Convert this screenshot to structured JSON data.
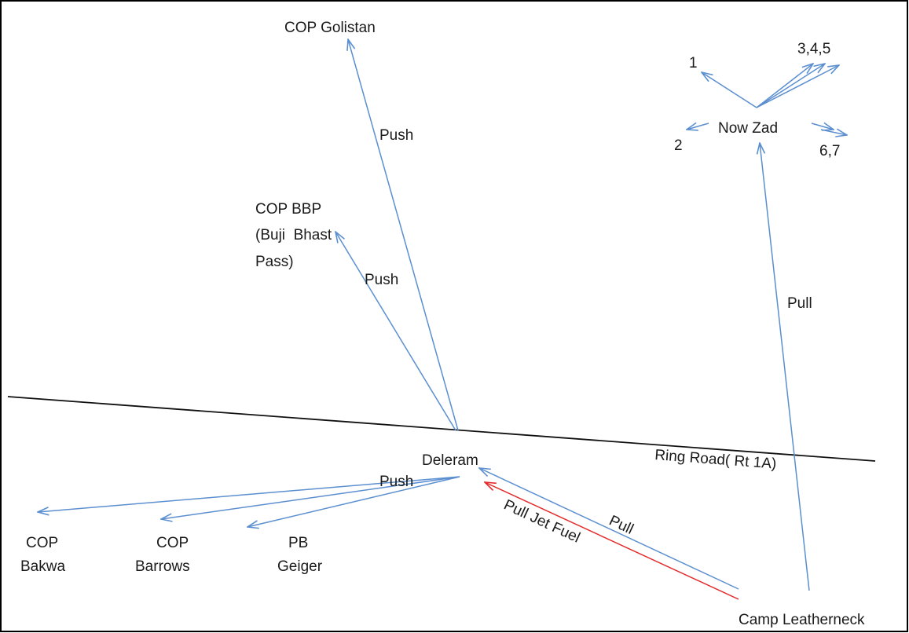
{
  "colors": {
    "arrow": "#5b8fd0",
    "road": "#111111",
    "fuel": "#e32b2b",
    "text": "#1a1a1a",
    "frame": "#000000"
  },
  "nodes": {
    "cop_golistan": "COP Golistan",
    "cop_bbp_line1": "COP BBP",
    "cop_bbp_line2": "(Buji  Bhast",
    "cop_bbp_line3": "Pass)",
    "now_zad": "Now Zad",
    "dest_1": "1",
    "dest_2": "2",
    "dest_345": "3,4,5",
    "dest_67": "6,7",
    "deleram": "Deleram",
    "cop_bakwa_line1": "COP",
    "cop_bakwa_line2": "Bakwa",
    "cop_barrows_line1": "COP",
    "cop_barrows_line2": "Barrows",
    "pb_geiger_line1": "PB",
    "pb_geiger_line2": "Geiger",
    "camp_leatherneck": "Camp Leatherneck"
  },
  "road": {
    "label": "Ring Road( Rt 1A)"
  },
  "edges": {
    "push_golistan": "Push",
    "push_bbp": "Push",
    "push_west": "Push",
    "pull_now_zad": "Pull",
    "pull_deleram": "Pull",
    "pull_jet_fuel": "Pull Jet Fuel"
  }
}
